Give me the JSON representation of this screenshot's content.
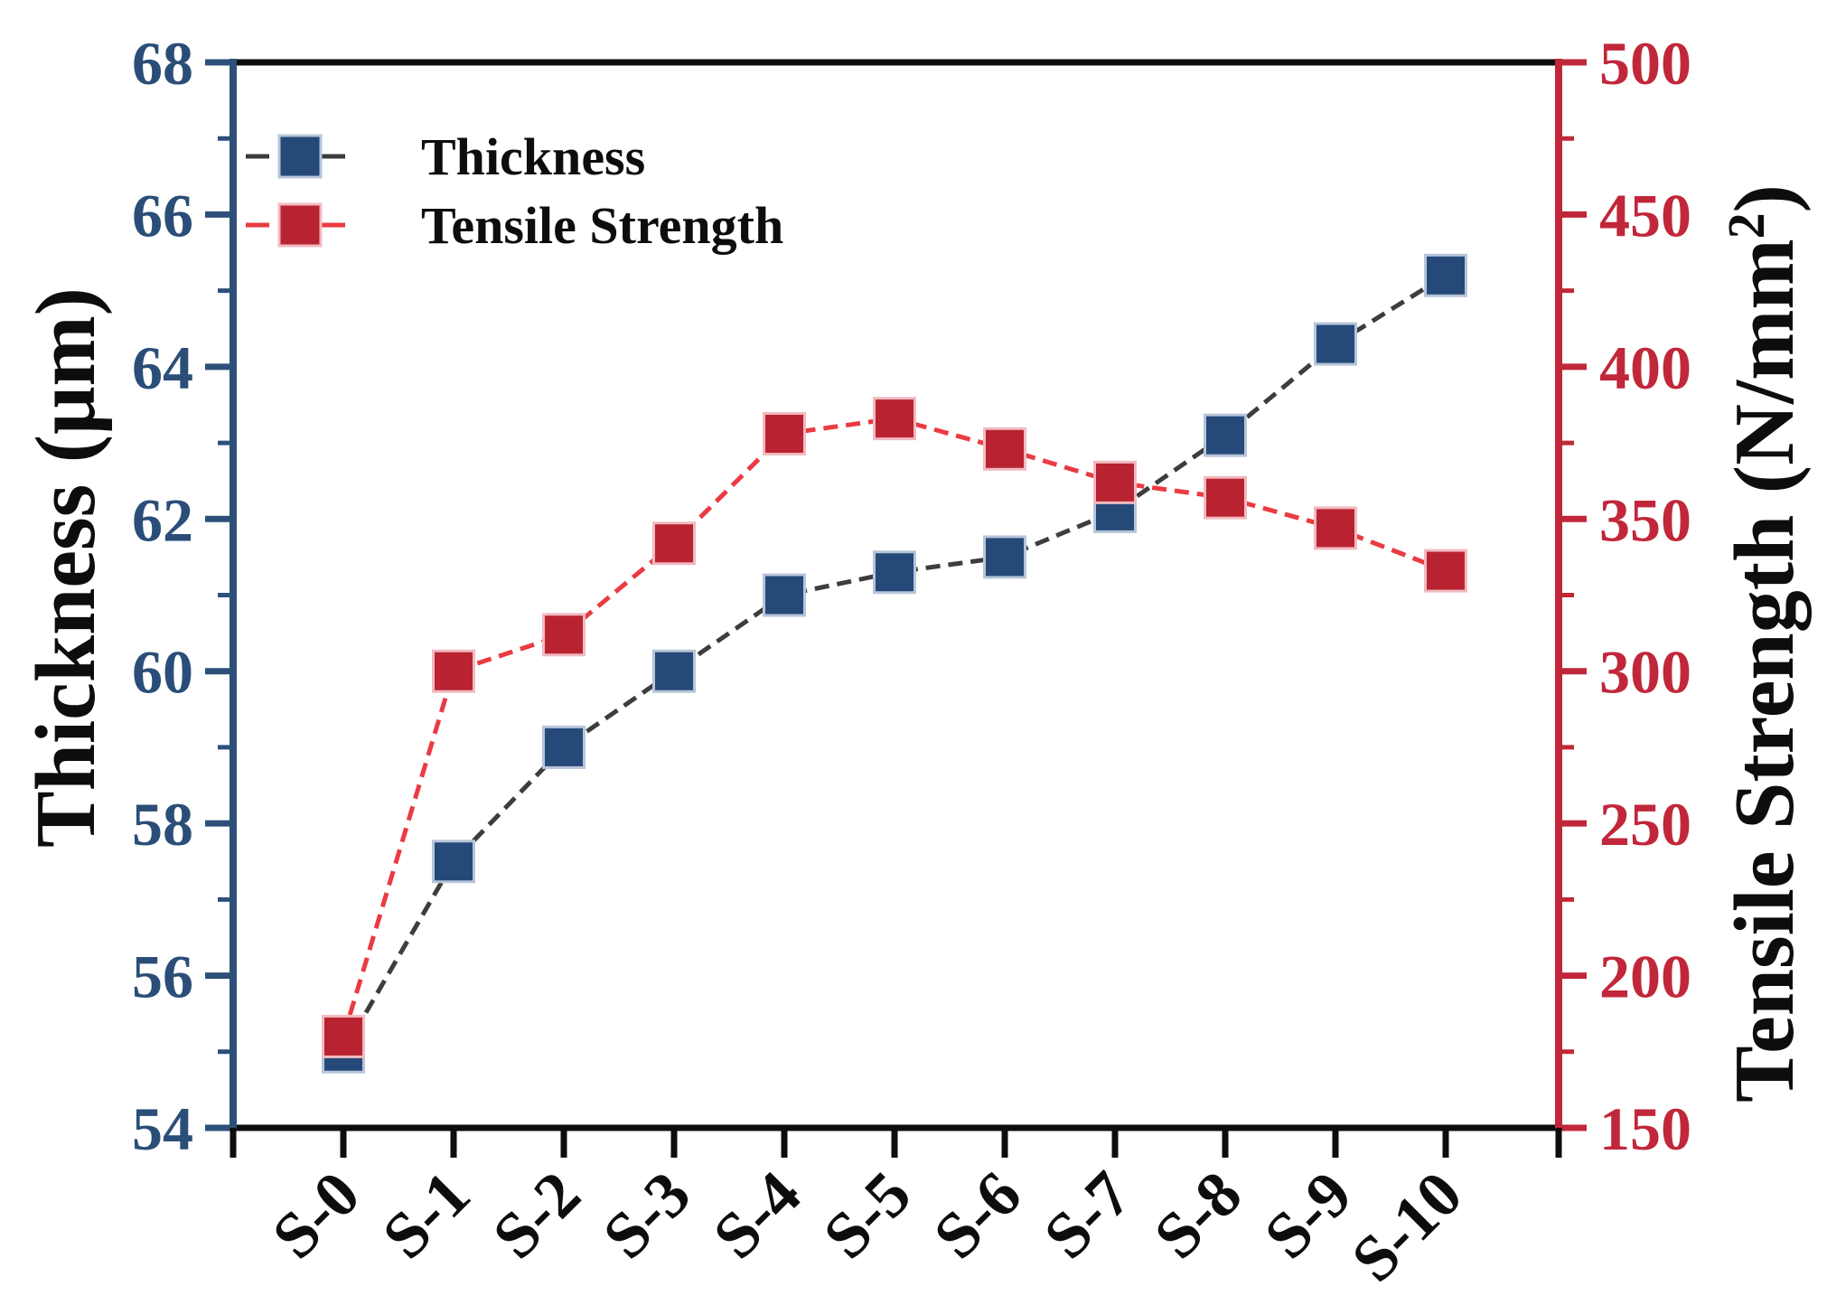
{
  "figure": {
    "background": "#ffffff"
  },
  "chart_data": {
    "type": "line",
    "categories": [
      "S-0",
      "S-1",
      "S-2",
      "S-3",
      "S-4",
      "S-5",
      "S-6",
      "S-7",
      "S-8",
      "S-9",
      "S-10"
    ],
    "series": [
      {
        "name": "Thickness",
        "axis": "left",
        "values": [
          55.0,
          57.5,
          59.0,
          60.0,
          61.0,
          61.3,
          61.5,
          62.1,
          63.1,
          64.3,
          65.2
        ],
        "marker": "square",
        "marker_color": "#254a7a",
        "marker_edge_color": "#b7c5d8",
        "line_color": "#3d3d3d",
        "line_style": "dashed"
      },
      {
        "name": "Tensile Strength",
        "axis": "right",
        "values": [
          180,
          300,
          312,
          342,
          378,
          383,
          373,
          362,
          357,
          347,
          333
        ],
        "marker": "square",
        "marker_color": "#b92331",
        "marker_edge_color": "#f1bac0",
        "line_color": "#ea3b42",
        "line_style": "dashed"
      }
    ],
    "axes": {
      "left": {
        "label": "Thickness (μm)",
        "min": 54,
        "max": 68,
        "major_step": 2,
        "minor_step": 1,
        "tick_labels": [
          "54",
          "56",
          "58",
          "60",
          "62",
          "64",
          "66",
          "68"
        ],
        "color": "#2a4e78",
        "spine_color": "#2d5078"
      },
      "right": {
        "label": "Tensile Strength (N/mm²)",
        "min": 150,
        "max": 500,
        "major_step": 50,
        "minor_step": 25,
        "tick_labels": [
          "150",
          "200",
          "250",
          "300",
          "350",
          "400",
          "450",
          "500"
        ],
        "color": "#c1273a",
        "spine_color": "#c1273a"
      },
      "bottom": {
        "label": "",
        "tick_labels": [
          "S-0",
          "S-1",
          "S-2",
          "S-3",
          "S-4",
          "S-5",
          "S-6",
          "S-7",
          "S-8",
          "S-9",
          "S-10"
        ],
        "color": "#0d0d0d"
      }
    },
    "legend": {
      "position": "upper-left",
      "items": [
        "Thickness",
        "Tensile Strength"
      ]
    },
    "grid": false,
    "title": ""
  }
}
